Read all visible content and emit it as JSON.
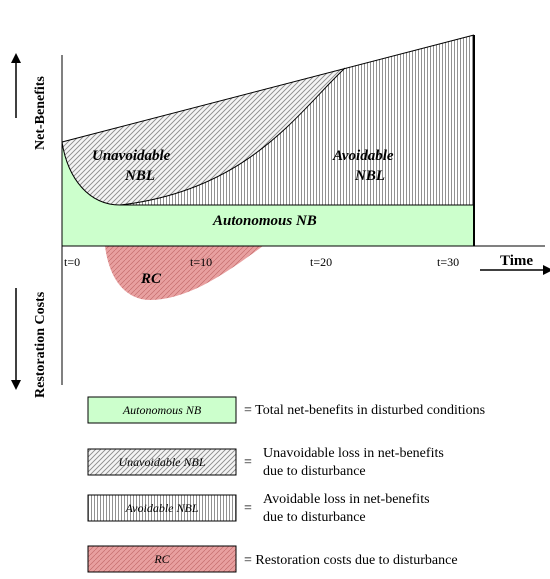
{
  "axes": {
    "y_top_label": "Net-Benefits",
    "y_bottom_label": "Restoration Costs",
    "x_label": "Time",
    "ticks": [
      "t=0",
      "t=10",
      "t=20",
      "t=30"
    ]
  },
  "areas": {
    "unavoidable_line1": "Unavoidable",
    "unavoidable_line2": "NBL",
    "avoidable_line1": "Avoidable",
    "avoidable_line2": "NBL",
    "autonomous": "Autonomous NB",
    "rc": "RC"
  },
  "legend": [
    {
      "swatch": "Autonomous NB",
      "line1": "= Total net-benefits in disturbed conditions",
      "line2": ""
    },
    {
      "swatch": "Unavoidable NBL",
      "line1": "Unavoidable loss in net-benefits",
      "line2": "due to disturbance"
    },
    {
      "swatch": "Avoidable NBL",
      "line1": "Avoidable loss in net-benefits",
      "line2": "due to disturbance"
    },
    {
      "swatch": "RC",
      "line1": "= Restoration costs due to disturbance",
      "line2": ""
    }
  ],
  "colors": {
    "autonomous_fill": "#ccffcc",
    "rc_fill": "#e8a0a0",
    "line": "#000000"
  }
}
